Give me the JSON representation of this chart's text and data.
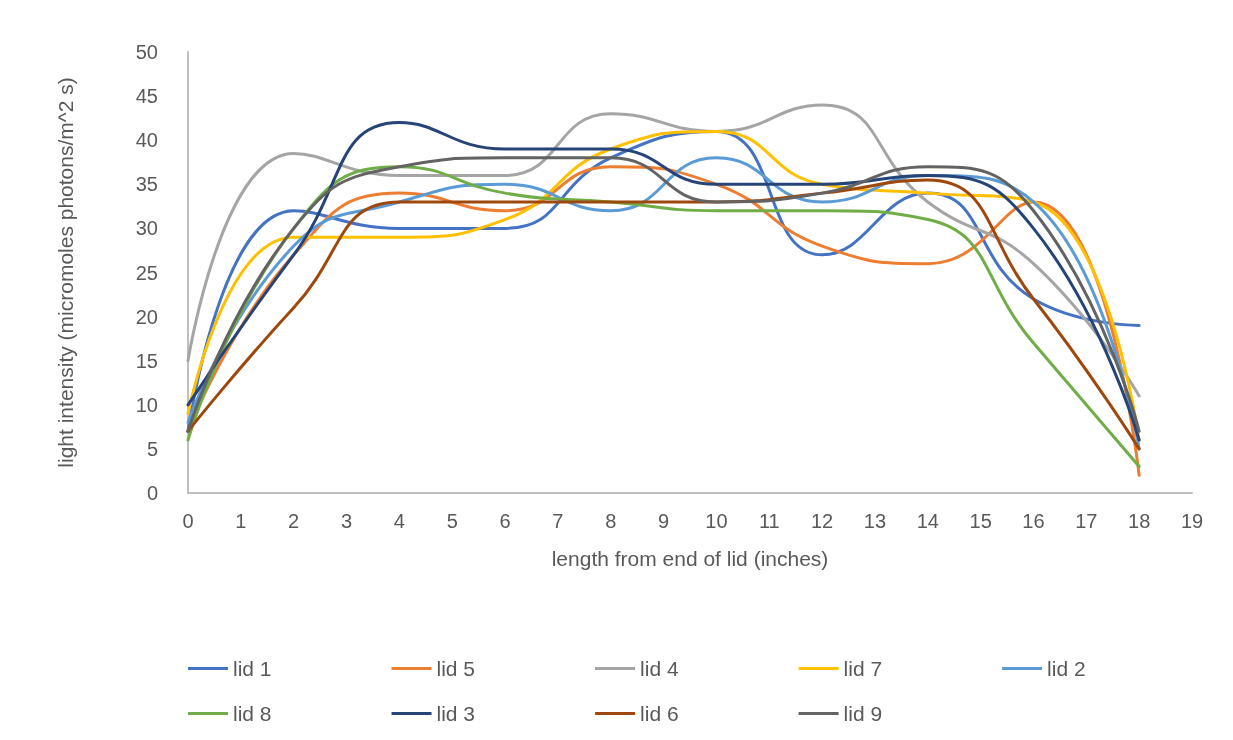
{
  "chart_data": {
    "type": "line",
    "xlabel": "length from end of lid (inches)",
    "ylabel": "light intensity (micromoles photons/m^2 s)",
    "x": [
      0,
      2,
      4,
      6,
      8,
      10,
      12,
      14,
      16,
      18
    ],
    "xlim": [
      0,
      19
    ],
    "xticks": [
      0,
      1,
      2,
      3,
      4,
      5,
      6,
      7,
      8,
      9,
      10,
      11,
      12,
      13,
      14,
      15,
      16,
      17,
      18,
      19
    ],
    "ylim": [
      0,
      50
    ],
    "yticks": [
      0,
      5,
      10,
      15,
      20,
      25,
      30,
      35,
      40,
      45,
      50
    ],
    "grid": false,
    "legend": "bottom",
    "marker": "none",
    "line_style": "solid",
    "series": [
      {
        "name": "lid 1",
        "color": "#4472c4",
        "values": [
          7,
          32,
          30,
          30,
          38,
          41,
          27,
          34,
          22,
          19
        ]
      },
      {
        "name": "lid 5",
        "color": "#ed7d31",
        "values": [
          7,
          27,
          34,
          32,
          37,
          35,
          28,
          26,
          33,
          2
        ]
      },
      {
        "name": "lid 4",
        "color": "#a5a5a5",
        "values": [
          15,
          38.5,
          36,
          36,
          43,
          41,
          44,
          33,
          26,
          11
        ]
      },
      {
        "name": "lid 7",
        "color": "#ffc000",
        "values": [
          9,
          29,
          29,
          31,
          39,
          41,
          35,
          34,
          33,
          6
        ]
      },
      {
        "name": "lid 2",
        "color": "#5b9bd5",
        "values": [
          8,
          28,
          33,
          35,
          32,
          38,
          33,
          36,
          33,
          5
        ]
      },
      {
        "name": "lid 8",
        "color": "#70ad47",
        "values": [
          6,
          30,
          37,
          34,
          33,
          32,
          32,
          31,
          17,
          3
        ]
      },
      {
        "name": "lid 3",
        "color": "#264478",
        "values": [
          10,
          27,
          42,
          39,
          39,
          35,
          35,
          36,
          30,
          6
        ]
      },
      {
        "name": "lid 6",
        "color": "#9e480e",
        "values": [
          7,
          21,
          33,
          33,
          33,
          33,
          34,
          35.5,
          22,
          5
        ]
      },
      {
        "name": "lid 9",
        "color": "#636363",
        "values": [
          7,
          30,
          37,
          38,
          38,
          33,
          34,
          37,
          32,
          7
        ]
      }
    ]
  }
}
